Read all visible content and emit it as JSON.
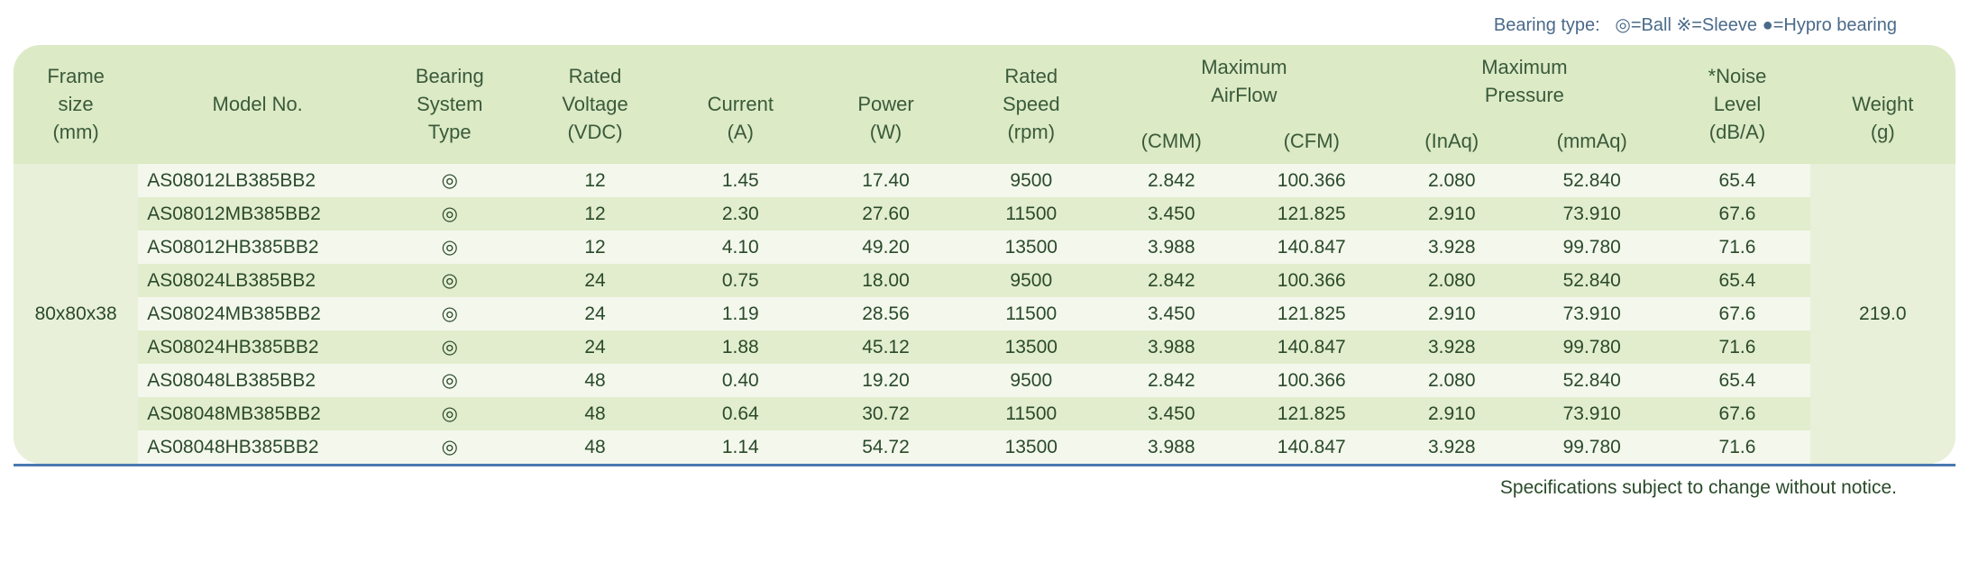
{
  "legend": {
    "prefix": "Bearing type:",
    "ball": "◎=Ball",
    "sleeve": "※=Sleeve",
    "hypro": "●=Hypro bearing"
  },
  "headers": {
    "frame": [
      "Frame",
      "size",
      "(mm)"
    ],
    "model": [
      "Model No."
    ],
    "bearing": [
      "Bearing",
      "System",
      "Type"
    ],
    "voltage": [
      "Rated",
      "Voltage",
      "(VDC)"
    ],
    "current": [
      "Current",
      "(A)"
    ],
    "power": [
      "Power",
      "(W)"
    ],
    "speed": [
      "Rated",
      "Speed",
      "(rpm)"
    ],
    "airflow": [
      "Maximum",
      "AirFlow"
    ],
    "cmm": "(CMM)",
    "cfm": "(CFM)",
    "pressure": [
      "Maximum",
      "Pressure"
    ],
    "inaq": "(InAq)",
    "mmaq": "(mmAq)",
    "noise": [
      "*Noise",
      "Level",
      "(dB/A)"
    ],
    "weight": [
      "Weight",
      "(g)"
    ]
  },
  "frame_size": "80x80x38",
  "weight_value": "219.0",
  "bearing_symbol": "◎",
  "rows": [
    {
      "model": "AS08012LB385BB2",
      "voltage": "12",
      "current": "1.45",
      "power": "17.40",
      "speed": "9500",
      "cmm": "2.842",
      "cfm": "100.366",
      "inaq": "2.080",
      "mmaq": "52.840",
      "noise": "65.4"
    },
    {
      "model": "AS08012MB385BB2",
      "voltage": "12",
      "current": "2.30",
      "power": "27.60",
      "speed": "11500",
      "cmm": "3.450",
      "cfm": "121.825",
      "inaq": "2.910",
      "mmaq": "73.910",
      "noise": "67.6"
    },
    {
      "model": "AS08012HB385BB2",
      "voltage": "12",
      "current": "4.10",
      "power": "49.20",
      "speed": "13500",
      "cmm": "3.988",
      "cfm": "140.847",
      "inaq": "3.928",
      "mmaq": "99.780",
      "noise": "71.6"
    },
    {
      "model": "AS08024LB385BB2",
      "voltage": "24",
      "current": "0.75",
      "power": "18.00",
      "speed": "9500",
      "cmm": "2.842",
      "cfm": "100.366",
      "inaq": "2.080",
      "mmaq": "52.840",
      "noise": "65.4"
    },
    {
      "model": "AS08024MB385BB2",
      "voltage": "24",
      "current": "1.19",
      "power": "28.56",
      "speed": "11500",
      "cmm": "3.450",
      "cfm": "121.825",
      "inaq": "2.910",
      "mmaq": "73.910",
      "noise": "67.6"
    },
    {
      "model": "AS08024HB385BB2",
      "voltage": "24",
      "current": "1.88",
      "power": "45.12",
      "speed": "13500",
      "cmm": "3.988",
      "cfm": "140.847",
      "inaq": "3.928",
      "mmaq": "99.780",
      "noise": "71.6"
    },
    {
      "model": "AS08048LB385BB2",
      "voltage": "48",
      "current": "0.40",
      "power": "19.20",
      "speed": "9500",
      "cmm": "2.842",
      "cfm": "100.366",
      "inaq": "2.080",
      "mmaq": "52.840",
      "noise": "65.4"
    },
    {
      "model": "AS08048MB385BB2",
      "voltage": "48",
      "current": "0.64",
      "power": "30.72",
      "speed": "11500",
      "cmm": "3.450",
      "cfm": "121.825",
      "inaq": "2.910",
      "mmaq": "73.910",
      "noise": "67.6"
    },
    {
      "model": "AS08048HB385BB2",
      "voltage": "48",
      "current": "1.14",
      "power": "54.72",
      "speed": "13500",
      "cmm": "3.988",
      "cfm": "140.847",
      "inaq": "3.928",
      "mmaq": "99.780",
      "noise": "71.6"
    }
  ],
  "footer": "Specifications subject to change without notice.",
  "colors": {
    "header_bg": "#dceac6",
    "odd_bg": "#f3f7ec",
    "even_bg": "#e2edce",
    "container_bg": "#e8f0da",
    "text": "#2a4a2a",
    "legend_text": "#4a6a8a",
    "border": "#4a7ab0"
  }
}
